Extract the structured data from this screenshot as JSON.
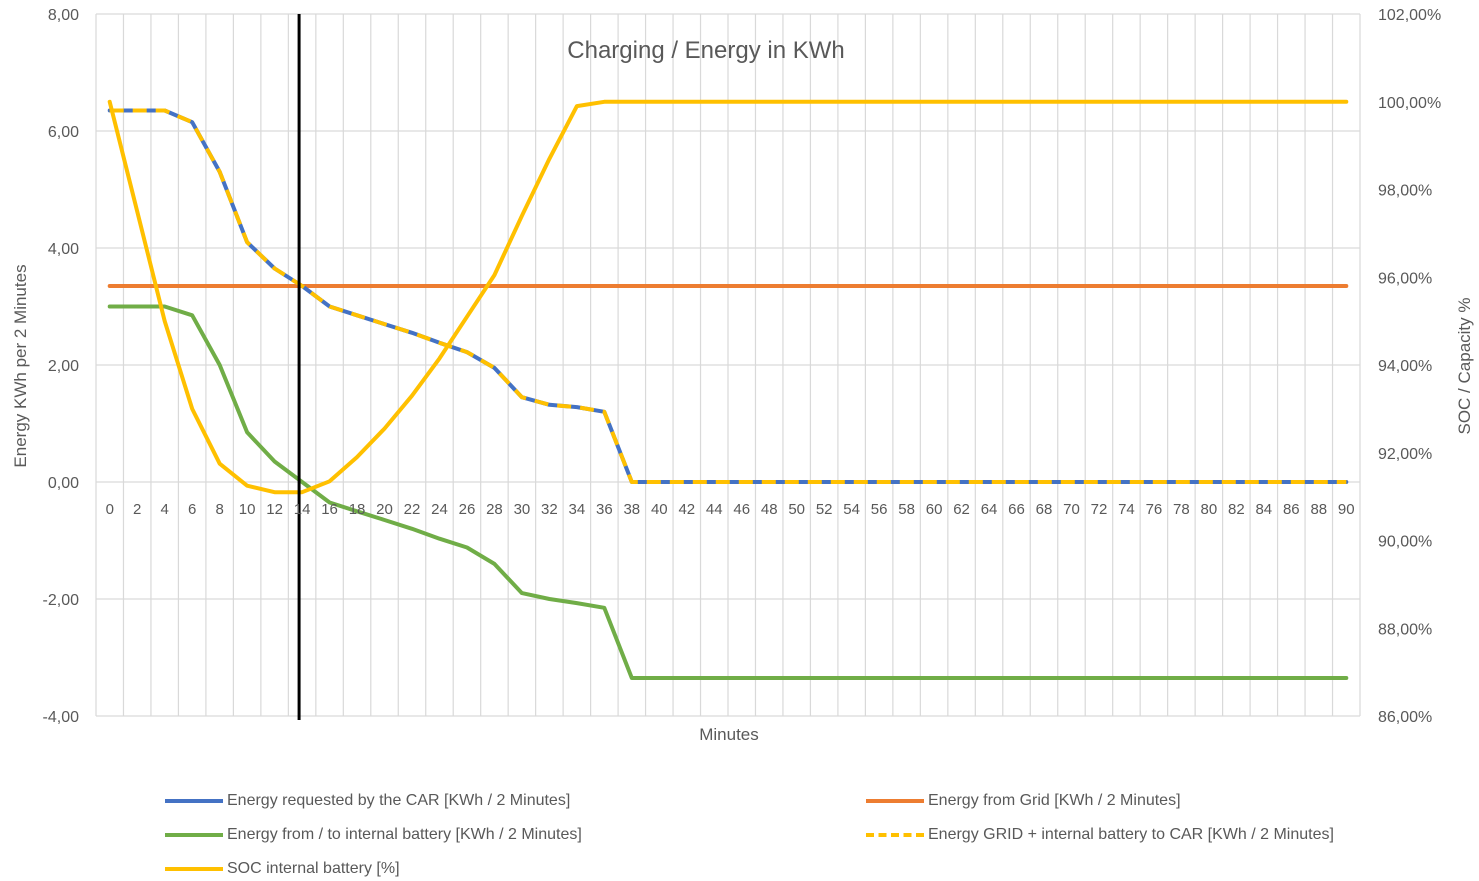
{
  "chart_data": {
    "type": "line",
    "title": "Charging / Energy in KWh",
    "xlabel": "Minutes",
    "ylabel": "Energy KWh per  2 Minutes",
    "y2label": "SOC / Capacity  %",
    "ylim": [
      -4,
      8
    ],
    "y2lim": [
      86,
      102
    ],
    "yticks": [
      "-4,00",
      "-2,00",
      "0,00",
      "2,00",
      "4,00",
      "6,00",
      "8,00"
    ],
    "y2ticks": [
      "86,00%",
      "88,00%",
      "90,00%",
      "92,00%",
      "94,00%",
      "96,00%",
      "98,00%",
      "100,00%",
      "102,00%"
    ],
    "x": [
      0,
      2,
      4,
      6,
      8,
      10,
      12,
      14,
      16,
      18,
      20,
      22,
      24,
      26,
      28,
      30,
      32,
      34,
      36,
      38,
      40,
      42,
      44,
      46,
      48,
      50,
      52,
      54,
      56,
      58,
      60,
      62,
      64,
      66,
      68,
      70,
      72,
      74,
      76,
      78,
      80,
      82,
      84,
      86,
      88,
      90
    ],
    "marker_line_x": 14,
    "grid": true,
    "legend_position": "bottom",
    "series": [
      {
        "name": "Energy requested by the CAR [KWh / 2 Minutes]",
        "color": "#4472C4",
        "axis": "left",
        "style": "solid",
        "values": [
          6.35,
          6.35,
          6.35,
          6.15,
          5.3,
          4.1,
          3.65,
          3.35,
          3.0,
          2.85,
          2.7,
          2.55,
          2.38,
          2.22,
          1.95,
          1.45,
          1.32,
          1.28,
          1.2,
          0,
          0,
          0,
          0,
          0,
          0,
          0,
          0,
          0,
          0,
          0,
          0,
          0,
          0,
          0,
          0,
          0,
          0,
          0,
          0,
          0,
          0,
          0,
          0,
          0,
          0,
          0
        ]
      },
      {
        "name": "Energy from Grid [KWh / 2 Minutes]",
        "color": "#ED7D31",
        "axis": "left",
        "style": "solid",
        "values": [
          3.35,
          3.35,
          3.35,
          3.35,
          3.35,
          3.35,
          3.35,
          3.35,
          3.35,
          3.35,
          3.35,
          3.35,
          3.35,
          3.35,
          3.35,
          3.35,
          3.35,
          3.35,
          3.35,
          3.35,
          3.35,
          3.35,
          3.35,
          3.35,
          3.35,
          3.35,
          3.35,
          3.35,
          3.35,
          3.35,
          3.35,
          3.35,
          3.35,
          3.35,
          3.35,
          3.35,
          3.35,
          3.35,
          3.35,
          3.35,
          3.35,
          3.35,
          3.35,
          3.35,
          3.35,
          3.35
        ]
      },
      {
        "name": "Energy from / to internal battery [KWh / 2 Minutes]",
        "color": "#70AD47",
        "axis": "left",
        "style": "solid",
        "values": [
          3.0,
          3.0,
          3.0,
          2.85,
          2.0,
          0.85,
          0.35,
          0.0,
          -0.35,
          -0.5,
          -0.65,
          -0.8,
          -0.97,
          -1.12,
          -1.4,
          -1.9,
          -2.0,
          -2.07,
          -2.15,
          -3.35,
          -3.35,
          -3.35,
          -3.35,
          -3.35,
          -3.35,
          -3.35,
          -3.35,
          -3.35,
          -3.35,
          -3.35,
          -3.35,
          -3.35,
          -3.35,
          -3.35,
          -3.35,
          -3.35,
          -3.35,
          -3.35,
          -3.35,
          -3.35,
          -3.35,
          -3.35,
          -3.35,
          -3.35,
          -3.35,
          -3.35
        ]
      },
      {
        "name": "Energy GRID + internal battery to CAR [KWh / 2 Minutes]",
        "color": "#FFC000",
        "axis": "left",
        "style": "dashed",
        "values": [
          6.35,
          6.35,
          6.35,
          6.15,
          5.3,
          4.1,
          3.65,
          3.35,
          3.0,
          2.85,
          2.7,
          2.55,
          2.38,
          2.22,
          1.95,
          1.45,
          1.32,
          1.28,
          1.2,
          0,
          0,
          0,
          0,
          0,
          0,
          0,
          0,
          0,
          0,
          0,
          0,
          0,
          0,
          0,
          0,
          0,
          0,
          0,
          0,
          0,
          0,
          0,
          0,
          0,
          0,
          0
        ]
      },
      {
        "name": "SOC internal battery [%]",
        "color": "#FFC000",
        "axis": "right",
        "style": "solid",
        "values": [
          100.0,
          97.5,
          95.0,
          93.0,
          91.75,
          91.25,
          91.1,
          91.1,
          91.35,
          91.9,
          92.55,
          93.3,
          94.15,
          95.1,
          96.05,
          97.4,
          98.7,
          99.9,
          100.0,
          100.0,
          100.0,
          100.0,
          100.0,
          100.0,
          100.0,
          100.0,
          100.0,
          100.0,
          100.0,
          100.0,
          100.0,
          100.0,
          100.0,
          100.0,
          100.0,
          100.0,
          100.0,
          100.0,
          100.0,
          100.0,
          100.0,
          100.0,
          100.0,
          100.0,
          100.0,
          100.0
        ]
      }
    ]
  }
}
